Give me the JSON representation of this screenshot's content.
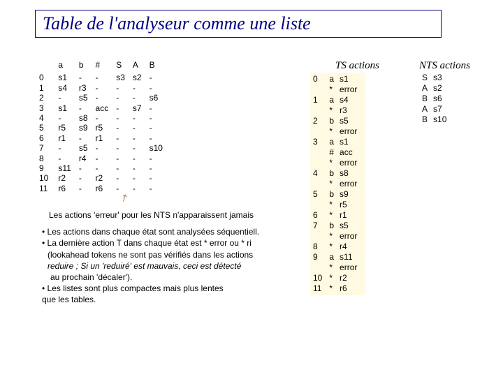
{
  "title": "Table de l'analyseur comme une liste",
  "headings": {
    "ts": "TS actions",
    "nts": "NTS actions"
  },
  "main_table": {
    "headers": [
      "",
      "a",
      "b",
      "#",
      "S",
      "A",
      "B"
    ],
    "rows": [
      [
        "0",
        "s1",
        "-",
        "-",
        "s3",
        "s2",
        "-"
      ],
      [
        "1",
        "s4",
        "r3",
        "-",
        "-",
        "-",
        "-"
      ],
      [
        "2",
        "-",
        "s5",
        "-",
        "-",
        "-",
        "s6"
      ],
      [
        "3",
        "s1",
        "-",
        "acc",
        "-",
        "s7",
        "-"
      ],
      [
        "4",
        "-",
        "s8",
        "-",
        "-",
        "-",
        "-"
      ],
      [
        "5",
        "r5",
        "s9",
        "r5",
        "-",
        "-",
        "-"
      ],
      [
        "6",
        "r1",
        "-",
        "r1",
        "-",
        "-",
        "-"
      ],
      [
        "7",
        "-",
        "s5",
        "-",
        "-",
        "-",
        "s10"
      ],
      [
        "8",
        "-",
        "r4",
        "-",
        "-",
        "-",
        "-"
      ],
      [
        "9",
        "s11",
        "-",
        "-",
        "-",
        "-",
        "-"
      ],
      [
        "10",
        "r2",
        "-",
        "r2",
        "-",
        "-",
        "-"
      ],
      [
        "11",
        "r6",
        "-",
        "r6",
        "-",
        "-",
        "-"
      ]
    ]
  },
  "ts_actions": {
    "rows": [
      [
        "0",
        "a",
        "s1"
      ],
      [
        "",
        "*",
        "error"
      ],
      [
        "1",
        "a",
        "s4"
      ],
      [
        "",
        "*",
        "r3"
      ],
      [
        "2",
        "b",
        "s5"
      ],
      [
        "",
        "*",
        "error"
      ],
      [
        "3",
        "a",
        "s1"
      ],
      [
        "",
        "#",
        "acc"
      ],
      [
        "",
        "*",
        "error"
      ],
      [
        "4",
        "b",
        "s8"
      ],
      [
        "",
        "*",
        "error"
      ],
      [
        "5",
        "b",
        "s9"
      ],
      [
        "",
        "*",
        "r5"
      ],
      [
        "6",
        "*",
        "r1"
      ],
      [
        "7",
        "b",
        "s5"
      ],
      [
        "",
        "*",
        "error"
      ],
      [
        "8",
        "*",
        "r4"
      ],
      [
        "9",
        "a",
        "s11"
      ],
      [
        "",
        "*",
        "error"
      ],
      [
        "10",
        "*",
        "r2"
      ],
      [
        "11",
        "*",
        "r6"
      ]
    ]
  },
  "nts_actions": {
    "rows": [
      [
        "S",
        "s3"
      ],
      [
        "A",
        "s2"
      ],
      [
        "",
        ""
      ],
      [
        "",
        ""
      ],
      [
        "B",
        "s6"
      ],
      [
        "",
        ""
      ],
      [
        "A",
        "s7"
      ],
      [
        "",
        ""
      ],
      [
        "",
        ""
      ],
      [
        "",
        ""
      ],
      [
        "",
        ""
      ],
      [
        "",
        ""
      ],
      [
        "",
        ""
      ],
      [
        "",
        ""
      ],
      [
        "B",
        "s10"
      ]
    ]
  },
  "notes": {
    "line1": "Les actions 'erreur' pour les NTS n'apparaissent jamais",
    "bullet1": "• Les actions dans chaque état sont analysées séquentiell.",
    "bullet2a": "• La dernière action T dans chaque état est * error ou * ri",
    "bullet2b": "(lookahead tokens ne sont pas vérifiés dans les actions",
    "bullet2c": "reduire ; Si un 'reduiré' est mauvais, ceci est détecté",
    "bullet2d": "au prochain 'décaler').",
    "bullet3a": "• Les listes sont plus compactes mais plus lentes",
    "bullet3b": "que les tables."
  }
}
